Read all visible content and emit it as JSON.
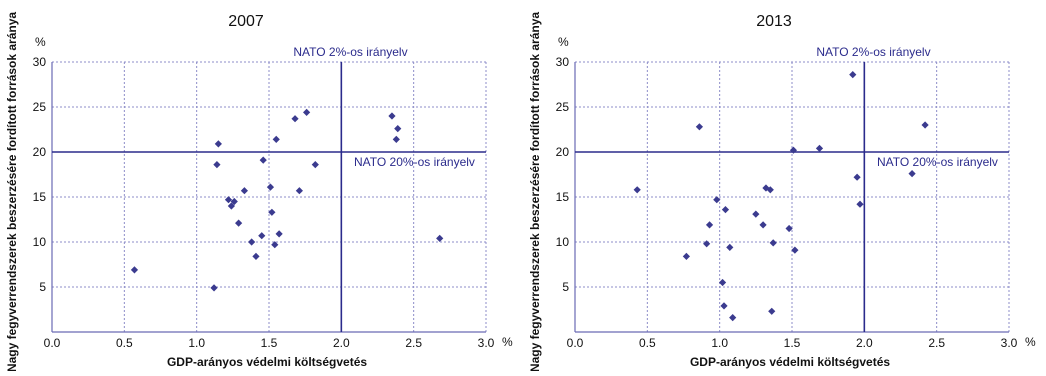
{
  "chart_data": [
    {
      "type": "scatter",
      "title": "2007",
      "xlabel": "GDP-arányos védelmi költségvetés",
      "ylabel": "Nagy fegyverrendszerek beszerzésére fordított források aránya",
      "x_unit": "%",
      "y_unit": "%",
      "xlim": [
        0.0,
        3.0
      ],
      "ylim": [
        0,
        30
      ],
      "x_ticks": [
        "0.0",
        "0.5",
        "1.0",
        "1.5",
        "2.0",
        "2.5",
        "3.0"
      ],
      "y_ticks": [
        "5",
        "10",
        "15",
        "20",
        "25",
        "30"
      ],
      "grid": true,
      "marker_color": "#3b3b8f",
      "reference_lines": [
        {
          "axis": "x",
          "value": 2.0,
          "label": "NATO 2%-os irányelv"
        },
        {
          "axis": "y",
          "value": 20,
          "label": "NATO 20%-os irányelv"
        }
      ],
      "points": [
        {
          "x": 0.57,
          "y": 6.9
        },
        {
          "x": 1.12,
          "y": 4.9
        },
        {
          "x": 1.14,
          "y": 18.6
        },
        {
          "x": 1.15,
          "y": 20.9
        },
        {
          "x": 1.22,
          "y": 14.7
        },
        {
          "x": 1.24,
          "y": 14.0
        },
        {
          "x": 1.26,
          "y": 14.5
        },
        {
          "x": 1.29,
          "y": 12.1
        },
        {
          "x": 1.33,
          "y": 15.7
        },
        {
          "x": 1.38,
          "y": 10.0
        },
        {
          "x": 1.41,
          "y": 8.4
        },
        {
          "x": 1.45,
          "y": 10.7
        },
        {
          "x": 1.46,
          "y": 19.1
        },
        {
          "x": 1.51,
          "y": 16.1
        },
        {
          "x": 1.52,
          "y": 13.3
        },
        {
          "x": 1.54,
          "y": 9.7
        },
        {
          "x": 1.55,
          "y": 21.4
        },
        {
          "x": 1.57,
          "y": 10.9
        },
        {
          "x": 1.68,
          "y": 23.7
        },
        {
          "x": 1.71,
          "y": 15.7
        },
        {
          "x": 1.76,
          "y": 24.4
        },
        {
          "x": 1.82,
          "y": 18.6
        },
        {
          "x": 2.35,
          "y": 24.0
        },
        {
          "x": 2.38,
          "y": 21.4
        },
        {
          "x": 2.39,
          "y": 22.6
        },
        {
          "x": 2.68,
          "y": 10.4
        }
      ]
    },
    {
      "type": "scatter",
      "title": "2013",
      "xlabel": "GDP-arányos védelmi költségvetés",
      "ylabel": "Nagy fegyverrendszerek beszerzésére fordított források aránya",
      "x_unit": "%",
      "y_unit": "%",
      "xlim": [
        0.0,
        3.0
      ],
      "ylim": [
        0,
        30
      ],
      "x_ticks": [
        "0.0",
        "0.5",
        "1.0",
        "1.5",
        "2.0",
        "2.5",
        "3.0"
      ],
      "y_ticks": [
        "5",
        "10",
        "15",
        "20",
        "25",
        "30"
      ],
      "grid": true,
      "marker_color": "#3b3b8f",
      "reference_lines": [
        {
          "axis": "x",
          "value": 2.0,
          "label": "NATO 2%-os irányelv"
        },
        {
          "axis": "y",
          "value": 20,
          "label": "NATO 20%-os irányelv"
        }
      ],
      "points": [
        {
          "x": 0.43,
          "y": 15.8
        },
        {
          "x": 0.77,
          "y": 8.4
        },
        {
          "x": 0.86,
          "y": 22.8
        },
        {
          "x": 0.91,
          "y": 9.8
        },
        {
          "x": 0.93,
          "y": 11.9
        },
        {
          "x": 0.98,
          "y": 14.7
        },
        {
          "x": 1.02,
          "y": 5.5
        },
        {
          "x": 1.03,
          "y": 2.9
        },
        {
          "x": 1.04,
          "y": 13.6
        },
        {
          "x": 1.07,
          "y": 9.4
        },
        {
          "x": 1.09,
          "y": 1.6
        },
        {
          "x": 1.25,
          "y": 13.1
        },
        {
          "x": 1.3,
          "y": 11.9
        },
        {
          "x": 1.32,
          "y": 16.0
        },
        {
          "x": 1.35,
          "y": 15.8
        },
        {
          "x": 1.36,
          "y": 2.3
        },
        {
          "x": 1.37,
          "y": 9.9
        },
        {
          "x": 1.48,
          "y": 11.5
        },
        {
          "x": 1.51,
          "y": 20.2
        },
        {
          "x": 1.52,
          "y": 9.1
        },
        {
          "x": 1.69,
          "y": 20.4
        },
        {
          "x": 1.92,
          "y": 28.6
        },
        {
          "x": 1.95,
          "y": 17.2
        },
        {
          "x": 1.97,
          "y": 14.2
        },
        {
          "x": 2.33,
          "y": 17.6
        },
        {
          "x": 2.42,
          "y": 23.0
        }
      ]
    }
  ]
}
